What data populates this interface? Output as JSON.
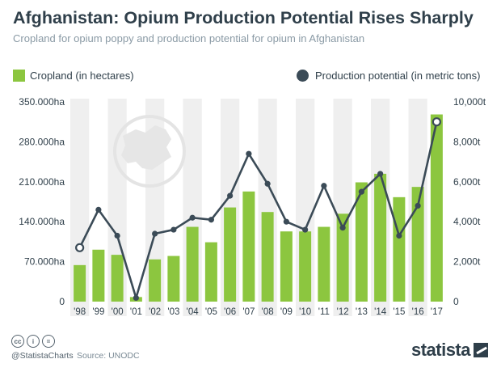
{
  "title": "Afghanistan: Opium Production Potential Rises Sharply",
  "subtitle": "Cropland for opium poppy and production potential for opium in Afghanistan",
  "legend": {
    "bars_label": "Cropland (in hectares)",
    "line_label": "Production potential (in metric tons)"
  },
  "footer": {
    "handle": "@StatistaCharts",
    "source": "Source: UNODC",
    "brand": "statista",
    "cc_icons": [
      "cc-icon",
      "by-icon",
      "equals-icon"
    ]
  },
  "colors": {
    "bars": "#8cc63f",
    "line": "#3b4b57",
    "band": "#efefef",
    "text": "#2f3f4a"
  },
  "chart_data": {
    "type": "bar",
    "categories": [
      "'98",
      "'99",
      "'00",
      "'01",
      "'02",
      "'03",
      "'04",
      "'05",
      "'06",
      "'07",
      "'08",
      "'09",
      "'10",
      "'11",
      "'12",
      "'13",
      "'14",
      "'15",
      "'16",
      "'17"
    ],
    "series": [
      {
        "name": "Cropland (in hectares)",
        "type": "bar",
        "axis": "left",
        "values": [
          64000,
          91000,
          82000,
          8000,
          74000,
          80000,
          131000,
          104000,
          165000,
          193000,
          157000,
          123000,
          123000,
          131000,
          154000,
          209000,
          224000,
          183000,
          201000,
          328000
        ]
      },
      {
        "name": "Production potential (in metric tons)",
        "type": "line",
        "axis": "right",
        "values": [
          2700,
          4600,
          3300,
          185,
          3400,
          3600,
          4200,
          4100,
          5300,
          7400,
          5900,
          4000,
          3600,
          5800,
          3700,
          5500,
          6400,
          3300,
          4800,
          9000
        ]
      }
    ],
    "left_axis": {
      "ticks": [
        "0",
        "70.000ha",
        "140.000ha",
        "210.000ha",
        "280.000ha",
        "350.000ha"
      ],
      "ylim": [
        0,
        350000
      ]
    },
    "right_axis": {
      "ticks": [
        "0",
        "2,000t",
        "4,000t",
        "6,000t",
        "8,000t",
        "10,000t"
      ],
      "ylim": [
        0,
        10000
      ]
    },
    "alternating_bands": true,
    "grid": false
  }
}
